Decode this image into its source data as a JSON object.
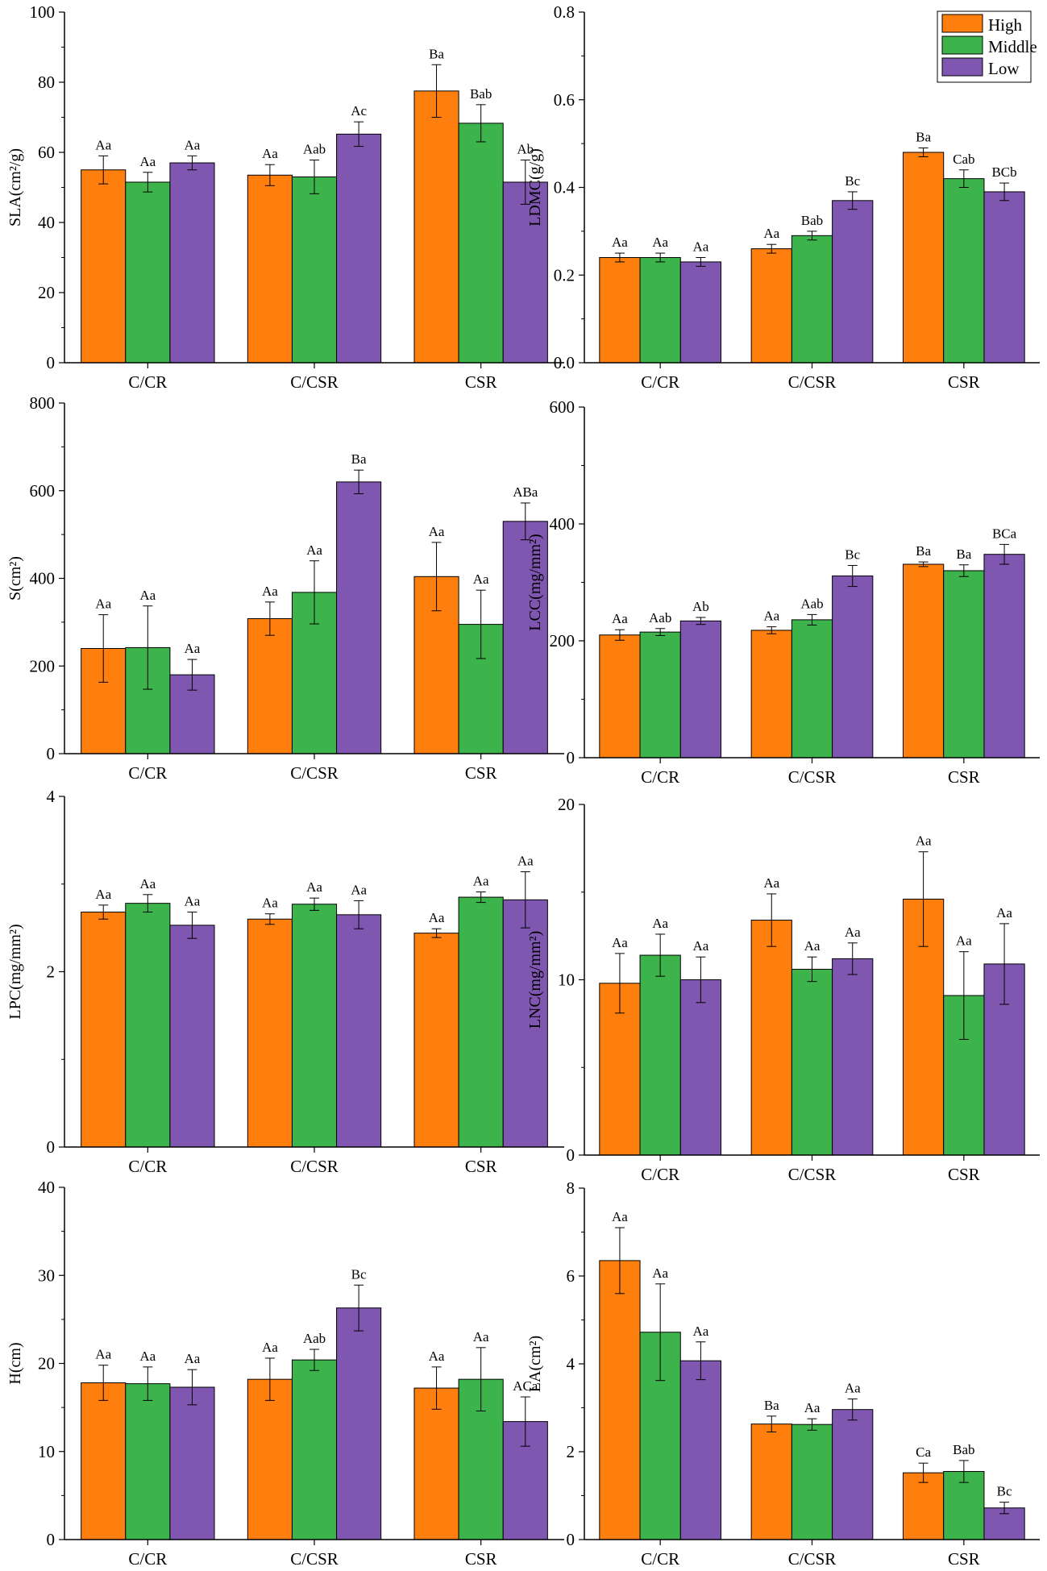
{
  "colors": {
    "High": "#ff7f0e",
    "Middle": "#3cb44b",
    "Low": "#7f56b0"
  },
  "legend": {
    "entries": [
      "High",
      "Middle",
      "Low"
    ],
    "placement": "top-right of LDMC panel"
  },
  "chart_data": [
    {
      "type": "bar",
      "ylabel": "SLA(cm²/g)",
      "ylim": [
        0,
        100
      ],
      "yticks": [
        0,
        20,
        40,
        60,
        80,
        100
      ],
      "categories": [
        "C/CR",
        "C/CSR",
        "CSR"
      ],
      "series": [
        {
          "name": "High",
          "values": [
            55,
            53.5,
            77.5
          ],
          "errors": [
            4,
            3,
            7.5
          ],
          "letters": [
            "Aa",
            "Aa",
            "Ba"
          ]
        },
        {
          "name": "Middle",
          "values": [
            51.5,
            53,
            68.3
          ],
          "errors": [
            2.8,
            4.8,
            5.3
          ],
          "letters": [
            "Aa",
            "Aab",
            "Bab"
          ]
        },
        {
          "name": "Low",
          "values": [
            57,
            65.2,
            51.5
          ],
          "errors": [
            2,
            3.5,
            6.3
          ],
          "letters": [
            "Aa",
            "Ac",
            "Ab"
          ]
        }
      ]
    },
    {
      "type": "bar",
      "ylabel": "LDMC(g/g)",
      "ylim": [
        0,
        0.8
      ],
      "yticks": [
        "0.0",
        "0.2",
        "0.4",
        "0.6",
        "0.8"
      ],
      "categories": [
        "C/CR",
        "C/CSR",
        "CSR"
      ],
      "series": [
        {
          "name": "High",
          "values": [
            0.24,
            0.26,
            0.48
          ],
          "errors": [
            0.01,
            0.01,
            0.01
          ],
          "letters": [
            "Aa",
            "Aa",
            "Ba"
          ]
        },
        {
          "name": "Middle",
          "values": [
            0.24,
            0.29,
            0.42
          ],
          "errors": [
            0.01,
            0.01,
            0.02
          ],
          "letters": [
            "Aa",
            "Bab",
            "Cab"
          ]
        },
        {
          "name": "Low",
          "values": [
            0.23,
            0.37,
            0.39
          ],
          "errors": [
            0.01,
            0.02,
            0.02
          ],
          "letters": [
            "Aa",
            "Bc",
            "BCb"
          ]
        }
      ]
    },
    {
      "type": "bar",
      "ylabel": "S(cm²)",
      "ylim": [
        0,
        800
      ],
      "yticks": [
        0,
        200,
        400,
        600,
        800
      ],
      "categories": [
        "C/CR",
        "C/CSR",
        "CSR"
      ],
      "series": [
        {
          "name": "High",
          "values": [
            240,
            308,
            404
          ],
          "errors": [
            77,
            38,
            78
          ],
          "letters": [
            "Aa",
            "Aa",
            "Aa"
          ]
        },
        {
          "name": "Middle",
          "values": [
            242,
            368,
            295
          ],
          "errors": [
            95,
            72,
            78
          ],
          "letters": [
            "Aa",
            "Aa",
            "Aa"
          ]
        },
        {
          "name": "Low",
          "values": [
            180,
            620,
            530
          ],
          "errors": [
            35,
            27,
            42
          ],
          "letters": [
            "Aa",
            "Ba",
            "ABa"
          ]
        }
      ]
    },
    {
      "type": "bar",
      "ylabel": "LCC(mg/mm²)",
      "ylim": [
        0,
        600
      ],
      "yticks": [
        0,
        200,
        400,
        600
      ],
      "categories": [
        "C/CR",
        "C/CSR",
        "CSR"
      ],
      "series": [
        {
          "name": "High",
          "values": [
            210,
            218,
            331
          ],
          "errors": [
            9,
            6,
            4
          ],
          "letters": [
            "Aa",
            "Aa",
            "Ba"
          ]
        },
        {
          "name": "Middle",
          "values": [
            215,
            236,
            320
          ],
          "errors": [
            6,
            9,
            10
          ],
          "letters": [
            "Aab",
            "Aab",
            "Ba"
          ]
        },
        {
          "name": "Low",
          "values": [
            234,
            311,
            348
          ],
          "errors": [
            6,
            18,
            17
          ],
          "letters": [
            "Ab",
            "Bc",
            "BCa"
          ]
        }
      ]
    },
    {
      "type": "bar",
      "ylabel": "LPC(mg/mm²)",
      "ylim": [
        0,
        4
      ],
      "yticks": [
        0,
        2,
        4
      ],
      "categories": [
        "C/CR",
        "C/CSR",
        "CSR"
      ],
      "series": [
        {
          "name": "High",
          "values": [
            2.68,
            2.6,
            2.44
          ],
          "errors": [
            0.08,
            0.06,
            0.05
          ],
          "letters": [
            "Aa",
            "Aa",
            "Aa"
          ]
        },
        {
          "name": "Middle",
          "values": [
            2.78,
            2.77,
            2.85
          ],
          "errors": [
            0.1,
            0.07,
            0.06
          ],
          "letters": [
            "Aa",
            "Aa",
            "Aa"
          ]
        },
        {
          "name": "Low",
          "values": [
            2.53,
            2.65,
            2.82
          ],
          "errors": [
            0.15,
            0.16,
            0.32
          ],
          "letters": [
            "Aa",
            "Aa",
            "Aa"
          ]
        }
      ]
    },
    {
      "type": "bar",
      "ylabel": "LNC(mg/mm²)",
      "ylim": [
        0,
        20
      ],
      "yticks": [
        0,
        10,
        20
      ],
      "categories": [
        "C/CR",
        "C/CSR",
        "CSR"
      ],
      "series": [
        {
          "name": "High",
          "values": [
            9.8,
            13.4,
            14.6
          ],
          "errors": [
            1.7,
            1.5,
            2.7
          ],
          "letters": [
            "Aa",
            "Aa",
            "Aa"
          ]
        },
        {
          "name": "Middle",
          "values": [
            11.4,
            10.6,
            9.1
          ],
          "errors": [
            1.2,
            0.7,
            2.5
          ],
          "letters": [
            "Aa",
            "Aa",
            "Aa"
          ]
        },
        {
          "name": "Low",
          "values": [
            10,
            11.2,
            10.9
          ],
          "errors": [
            1.3,
            0.9,
            2.3
          ],
          "letters": [
            "Aa",
            "Aa",
            "Aa"
          ]
        }
      ]
    },
    {
      "type": "bar",
      "ylabel": "H(cm)",
      "ylim": [
        0,
        40
      ],
      "yticks": [
        0,
        10,
        20,
        30,
        40
      ],
      "categories": [
        "C/CR",
        "C/CSR",
        "CSR"
      ],
      "series": [
        {
          "name": "High",
          "values": [
            17.8,
            18.2,
            17.2
          ],
          "errors": [
            2,
            2.4,
            2.4
          ],
          "letters": [
            "Aa",
            "Aa",
            "Aa"
          ]
        },
        {
          "name": "Middle",
          "values": [
            17.7,
            20.4,
            18.2
          ],
          "errors": [
            1.9,
            1.2,
            3.6
          ],
          "letters": [
            "Aa",
            "Aab",
            "Aa"
          ]
        },
        {
          "name": "Low",
          "values": [
            17.3,
            26.3,
            13.4
          ],
          "errors": [
            2,
            2.6,
            2.8
          ],
          "letters": [
            "Aa",
            "Bc",
            "ACa"
          ]
        }
      ]
    },
    {
      "type": "bar",
      "ylabel": "LA(cm²)",
      "ylim": [
        0,
        8
      ],
      "yticks": [
        0,
        2,
        4,
        6,
        8
      ],
      "categories": [
        "C/CR",
        "C/CSR",
        "CSR"
      ],
      "series": [
        {
          "name": "High",
          "values": [
            6.35,
            2.63,
            1.52
          ],
          "errors": [
            0.75,
            0.18,
            0.22
          ],
          "letters": [
            "Aa",
            "Ba",
            "Ca"
          ]
        },
        {
          "name": "Middle",
          "values": [
            4.72,
            2.62,
            1.55
          ],
          "errors": [
            1.1,
            0.13,
            0.25
          ],
          "letters": [
            "Aa",
            "Aa",
            "Bab"
          ]
        },
        {
          "name": "Low",
          "values": [
            4.07,
            2.96,
            0.72
          ],
          "errors": [
            0.43,
            0.24,
            0.13
          ],
          "letters": [
            "Aa",
            "Aa",
            "Bc"
          ]
        }
      ]
    }
  ]
}
